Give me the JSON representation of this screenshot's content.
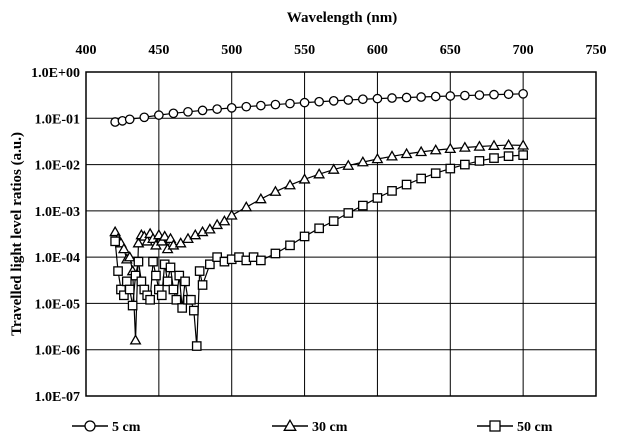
{
  "chart_data": {
    "type": "scatter",
    "title": "",
    "xlabel": "Wavelength (nm)",
    "ylabel": "Travelled light level ratios (a.u.)",
    "x_axis_position": "top",
    "xlim": [
      400,
      750
    ],
    "xticks": [
      "400",
      "450",
      "500",
      "550",
      "600",
      "650",
      "700",
      "750"
    ],
    "y_scale": "log",
    "ylim": [
      1e-07,
      1
    ],
    "yticks": [
      "1.0E+00",
      "1.0E-01",
      "1.0E-02",
      "1.0E-03",
      "1.0E-04",
      "1.0E-05",
      "1.0E-06",
      "1.0E-07"
    ],
    "grid": true,
    "legend_position": "bottom",
    "series": [
      {
        "name": "5 cm",
        "marker": "circle",
        "x": [
          420,
          425,
          430,
          440,
          450,
          460,
          470,
          480,
          490,
          500,
          510,
          520,
          530,
          540,
          550,
          560,
          570,
          580,
          590,
          600,
          610,
          620,
          630,
          640,
          650,
          660,
          670,
          680,
          690,
          700
        ],
        "y": [
          0.083,
          0.088,
          0.095,
          0.105,
          0.117,
          0.128,
          0.138,
          0.148,
          0.158,
          0.168,
          0.178,
          0.188,
          0.198,
          0.208,
          0.218,
          0.228,
          0.238,
          0.248,
          0.258,
          0.266,
          0.274,
          0.281,
          0.288,
          0.296,
          0.303,
          0.31,
          0.317,
          0.324,
          0.331,
          0.338
        ]
      },
      {
        "name": "30 cm",
        "marker": "triangle",
        "x": [
          420,
          422,
          424,
          426,
          428,
          430,
          432,
          434,
          436,
          438,
          440,
          442,
          444,
          446,
          448,
          450,
          452,
          454,
          456,
          458,
          460,
          465,
          470,
          475,
          480,
          485,
          490,
          495,
          500,
          510,
          520,
          530,
          540,
          550,
          560,
          570,
          580,
          590,
          600,
          610,
          620,
          630,
          640,
          650,
          660,
          670,
          680,
          690,
          700
        ],
        "y": [
          0.00035,
          0.00025,
          0.0002,
          0.00015,
          9e-05,
          0.0001,
          5e-05,
          1.6e-06,
          0.0002,
          0.0003,
          0.00028,
          0.00022,
          0.00032,
          0.00025,
          0.00018,
          0.0003,
          0.00022,
          0.00028,
          0.00015,
          0.00025,
          0.00018,
          0.0002,
          0.00025,
          0.0003,
          0.00035,
          0.0004,
          0.0005,
          0.0006,
          0.0008,
          0.0012,
          0.0018,
          0.0026,
          0.0036,
          0.0048,
          0.0062,
          0.0078,
          0.0095,
          0.0113,
          0.0132,
          0.0151,
          0.017,
          0.0188,
          0.0205,
          0.022,
          0.0234,
          0.0246,
          0.0256,
          0.0264,
          0.026
        ]
      },
      {
        "name": "50 cm",
        "marker": "square",
        "x": [
          420,
          422,
          424,
          426,
          428,
          430,
          432,
          434,
          436,
          438,
          440,
          442,
          444,
          446,
          448,
          450,
          452,
          454,
          456,
          458,
          460,
          462,
          464,
          466,
          468,
          470,
          472,
          474,
          476,
          478,
          480,
          485,
          490,
          495,
          500,
          505,
          510,
          515,
          520,
          530,
          540,
          550,
          560,
          570,
          580,
          590,
          600,
          610,
          620,
          630,
          640,
          650,
          660,
          670,
          680,
          690,
          700
        ],
        "y": [
          0.00022,
          5e-05,
          2e-05,
          1.5e-05,
          3e-05,
          2e-05,
          9e-06,
          4e-05,
          8e-05,
          3e-05,
          2e-05,
          1.5e-05,
          1.2e-05,
          8e-05,
          4e-05,
          2e-05,
          1.5e-05,
          7e-05,
          3e-05,
          6e-05,
          2e-05,
          1.2e-05,
          4e-05,
          8e-06,
          3e-05,
          1.2e-05,
          1.2e-05,
          7e-06,
          1.2e-06,
          5e-05,
          2.5e-05,
          7e-05,
          0.0001,
          8e-05,
          9e-05,
          0.0001,
          8.5e-05,
          0.0001,
          8.5e-05,
          0.00012,
          0.00018,
          0.00028,
          0.00042,
          0.0006,
          0.0009,
          0.0013,
          0.0019,
          0.0027,
          0.0037,
          0.005,
          0.0065,
          0.0082,
          0.01,
          0.012,
          0.0138,
          0.0152,
          0.016
        ]
      }
    ]
  }
}
